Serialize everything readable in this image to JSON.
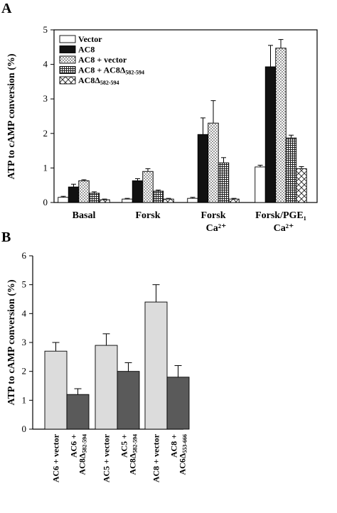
{
  "panels": [
    {
      "letter": "A"
    },
    {
      "letter": "B"
    }
  ],
  "colors": {
    "dark_fill": "#111111",
    "light_fill": "#dcdcdc",
    "medium_fill": "#5a5a5a",
    "white_fill": "#ffffff"
  },
  "chart_data": [
    {
      "type": "bar",
      "panel": "A",
      "ylabel": "ATP to cAMP conversion (%)",
      "xlabel": "",
      "ylim": [
        0,
        5
      ],
      "yticks": [
        "0",
        "1",
        "2",
        "3",
        "4",
        "5"
      ],
      "legend_position": "top-left",
      "grid": false,
      "categories": [
        {
          "line1": "Basal",
          "line2": ""
        },
        {
          "line1": "Forsk",
          "line2": ""
        },
        {
          "line1": "Forsk",
          "line2": "Ca²⁺"
        },
        {
          "line1": "Forsk/PGE₁",
          "line2": "Ca²⁺"
        }
      ],
      "series": [
        {
          "name": "Vector",
          "pattern": "white",
          "values": [
            0.15,
            0.1,
            0.12,
            1.03
          ],
          "errors": [
            0.03,
            0.02,
            0.03,
            0.05
          ]
        },
        {
          "name": "AC8",
          "pattern": "black",
          "values": [
            0.45,
            0.63,
            1.97,
            3.93
          ],
          "errors": [
            0.08,
            0.06,
            0.48,
            0.62
          ]
        },
        {
          "name": "AC8 + vector",
          "pattern": "dots",
          "values": [
            0.63,
            0.9,
            2.3,
            4.47
          ],
          "errors": [
            0.03,
            0.08,
            0.65,
            0.25
          ]
        },
        {
          "name": "AC8 + AC8Δ582-594",
          "pattern": "grid",
          "values": [
            0.27,
            0.33,
            1.15,
            1.87
          ],
          "errors": [
            0.04,
            0.03,
            0.15,
            0.08
          ]
        },
        {
          "name": "AC8Δ582-594",
          "pattern": "cross",
          "values": [
            0.08,
            0.1,
            0.1,
            0.98
          ],
          "errors": [
            0.02,
            0.02,
            0.02,
            0.06
          ]
        }
      ]
    },
    {
      "type": "bar",
      "panel": "B",
      "ylabel": "ATP to cAMP conversion (%)",
      "xlabel": "",
      "ylim": [
        0,
        6
      ],
      "yticks": [
        "0",
        "1",
        "2",
        "3",
        "4",
        "5",
        "6"
      ],
      "grid": false,
      "categories": [
        "AC6 + vector",
        "AC6 + AC8Δ582-594",
        "AC5 + vector",
        "AC5 + AC8Δ582-594",
        "AC8 + vector",
        "AC8 + AC6Δ553-666"
      ],
      "category_labels": [
        {
          "lines": [
            "AC6 + vector"
          ],
          "sub": ""
        },
        {
          "lines": [
            "AC6 +",
            "AC8Δ"
          ],
          "sub": "582-594"
        },
        {
          "lines": [
            "AC5 + vector"
          ],
          "sub": ""
        },
        {
          "lines": [
            "AC5 +",
            "AC8Δ"
          ],
          "sub": "582-594"
        },
        {
          "lines": [
            "AC8 + vector"
          ],
          "sub": ""
        },
        {
          "lines": [
            "AC8 +",
            "AC6Δ"
          ],
          "sub": "553-666"
        }
      ],
      "values": [
        2.7,
        1.2,
        2.9,
        2.0,
        4.4,
        1.8
      ],
      "errors": [
        0.3,
        0.2,
        0.4,
        0.3,
        0.6,
        0.4
      ],
      "bar_fills": [
        "light",
        "medium",
        "light",
        "medium",
        "light",
        "medium"
      ]
    }
  ]
}
